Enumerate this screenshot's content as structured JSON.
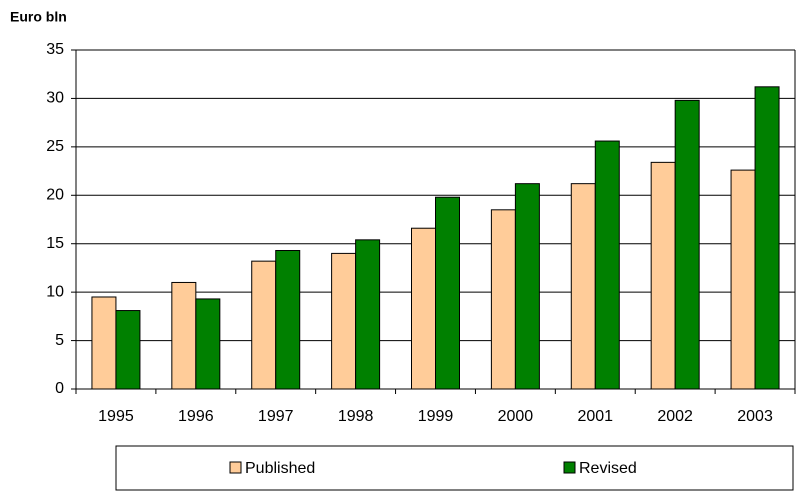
{
  "chart_data": {
    "type": "bar",
    "title": "Euro bln",
    "categories": [
      "1995",
      "1996",
      "1997",
      "1998",
      "1999",
      "2000",
      "2001",
      "2002",
      "2003"
    ],
    "series": [
      {
        "name": "Published",
        "color": "#ffcc99",
        "values": [
          9.5,
          11.0,
          13.2,
          14.0,
          16.6,
          18.5,
          21.2,
          23.4,
          22.6
        ]
      },
      {
        "name": "Revised",
        "color": "#008000",
        "values": [
          8.1,
          9.3,
          14.3,
          15.4,
          19.8,
          21.2,
          25.6,
          29.8,
          31.2
        ]
      }
    ],
    "ylim": [
      0,
      35
    ],
    "yticks": [
      0,
      5,
      10,
      15,
      20,
      25,
      30,
      35
    ],
    "grid": true,
    "legend": "bottom"
  }
}
